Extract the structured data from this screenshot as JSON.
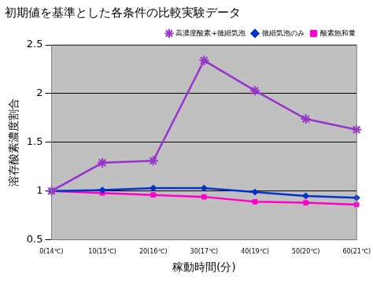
{
  "chart_data": {
    "type": "line",
    "title": "初期値を基準とした各条件の比較実験データ",
    "x_label": "稼動時間(分)",
    "y_label": "溶存酸素濃度割合",
    "categories": [
      "0(14℃)",
      "10(15℃)",
      "20(16℃)",
      "30(17℃)",
      "40(19℃)",
      "50(20℃)",
      "60(21℃)"
    ],
    "series": [
      {
        "name": "高濃度酸素+微細気泡",
        "color": "#9933cc",
        "marker": "star",
        "values": [
          1,
          1.29,
          1.31,
          2.34,
          2.03,
          1.74,
          1.63
        ]
      },
      {
        "name": "微細気泡のみ",
        "color": "#0033cc",
        "marker": "rectRot",
        "values": [
          1,
          1.01,
          1.03,
          1.03,
          0.99,
          0.95,
          0.93
        ]
      },
      {
        "name": "酸素飽和量",
        "color": "#ff00cc",
        "marker": "rect",
        "values": [
          1,
          0.98,
          0.96,
          0.94,
          0.89,
          0.88,
          0.86
        ]
      }
    ],
    "ylim": [
      0.5,
      2.5
    ],
    "yticks": [
      0.5,
      1,
      1.5,
      2,
      2.5
    ],
    "grid": true,
    "legend": "top right"
  }
}
